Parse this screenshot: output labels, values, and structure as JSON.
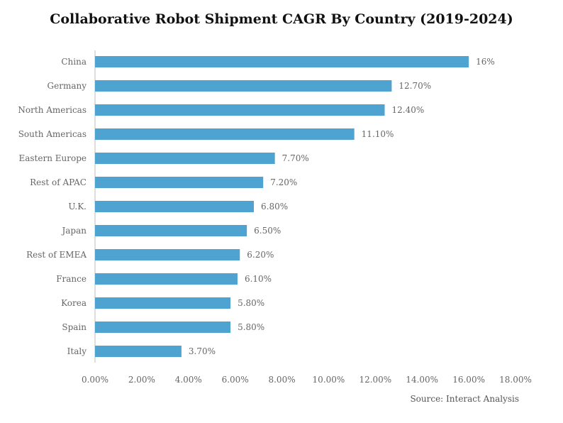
{
  "chart_data": {
    "type": "bar",
    "orientation": "horizontal",
    "title": "Collaborative Robot Shipment CAGR By Country (2019-2024)",
    "categories": [
      "China",
      "Germany",
      "North Americas",
      "South Americas",
      "Eastern Europe",
      "Rest of APAC",
      "U.K.",
      "Japan",
      "Rest of EMEA",
      "France",
      "Korea",
      "Spain",
      "Italy"
    ],
    "values": [
      16.0,
      12.7,
      12.4,
      11.1,
      7.7,
      7.2,
      6.8,
      6.5,
      6.2,
      6.1,
      5.8,
      5.8,
      3.7
    ],
    "data_labels": [
      "16%",
      "12.70%",
      "12.40%",
      "11.10%",
      "7.70%",
      "7.20%",
      "6.80%",
      "6.50%",
      "6.20%",
      "6.10%",
      "5.80%",
      "5.80%",
      "3.70%"
    ],
    "x_ticks": [
      "0.00%",
      "2.00%",
      "4.00%",
      "6.00%",
      "8.00%",
      "10.00%",
      "12.00%",
      "14.00%",
      "16.00%",
      "18.00%"
    ],
    "xlim": [
      0,
      18
    ],
    "xlabel": "",
    "ylabel": "",
    "grid": false,
    "bar_color": "#4fa3d1",
    "source": "Source: Interact Analysis"
  }
}
